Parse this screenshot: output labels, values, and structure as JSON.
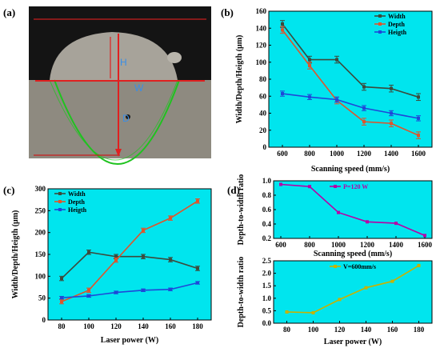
{
  "panel_labels": {
    "a": "(a)",
    "b": "(b)",
    "c": "(c)",
    "d": "(d)"
  },
  "photo": {
    "label_h": "H",
    "label_w": "W",
    "label_d": "D"
  },
  "colors": {
    "plot_bg": "#00e5ee",
    "width": "#3c4a3c",
    "depth": "#e0542a",
    "heigth": "#1f47d8",
    "ratio_speed": "#b800a6",
    "ratio_power": "#c8b200"
  },
  "chart_data": [
    {
      "id": "b",
      "type": "line",
      "xlabel": "Scanning speed (mm/s)",
      "ylabel": "Width/Depth/Heigth (μm)",
      "x": [
        600,
        800,
        1000,
        1200,
        1400,
        1600
      ],
      "xticks": [
        "600",
        "800",
        "1000",
        "1200",
        "1400",
        "1600"
      ],
      "ylim": [
        0,
        160
      ],
      "yticks": [
        "0",
        "20",
        "40",
        "60",
        "80",
        "100",
        "120",
        "140",
        "160"
      ],
      "legend_position": "top-right",
      "series": [
        {
          "name": "Width",
          "values": [
            145,
            103,
            103,
            71,
            69,
            59
          ],
          "err": 4
        },
        {
          "name": "Depth",
          "values": [
            138,
            96,
            55,
            30,
            28,
            14
          ],
          "err": 4
        },
        {
          "name": "Heigth",
          "values": [
            63,
            59,
            56,
            46,
            40,
            34
          ],
          "err": 3
        }
      ]
    },
    {
      "id": "c",
      "type": "line",
      "xlabel": "Laser power (W)",
      "ylabel": "Width/Depth/Heigth (μm)",
      "x": [
        80,
        100,
        120,
        140,
        160,
        180
      ],
      "xticks": [
        "80",
        "100",
        "120",
        "140",
        "160",
        "180"
      ],
      "ylim": [
        0,
        300
      ],
      "yticks": [
        "0",
        "50",
        "100",
        "150",
        "200",
        "250",
        "300"
      ],
      "legend_position": "top-left",
      "series": [
        {
          "name": "Width",
          "values": [
            95,
            155,
            145,
            145,
            138,
            118
          ],
          "err": 5
        },
        {
          "name": "Depth",
          "values": [
            42,
            68,
            137,
            205,
            233,
            272
          ],
          "err": 5
        },
        {
          "name": "Heigth",
          "values": [
            51,
            55,
            63,
            68,
            70,
            85
          ],
          "err": 3
        }
      ]
    },
    {
      "id": "d1",
      "type": "line",
      "xlabel": "Scanning speed (mm/s)",
      "ylabel": "Depth-to-width ratio",
      "x": [
        600,
        800,
        1000,
        1200,
        1400,
        1600
      ],
      "xticks": [
        "600",
        "800",
        "1000",
        "1200",
        "1400",
        "1600"
      ],
      "ylim": [
        0.2,
        1.0
      ],
      "yticks": [
        "0.2",
        "0.4",
        "0.6",
        "0.8",
        "1.0"
      ],
      "legend_position": "top-center",
      "series": [
        {
          "name": "P=120 W",
          "values": [
            0.95,
            0.92,
            0.56,
            0.43,
            0.41,
            0.24
          ]
        }
      ]
    },
    {
      "id": "d2",
      "type": "line",
      "xlabel": "Laser power (W)",
      "ylabel": "Depth-to-width ratio",
      "x": [
        80,
        100,
        120,
        140,
        160,
        180
      ],
      "xticks": [
        "80",
        "100",
        "120",
        "140",
        "160",
        "180"
      ],
      "ylim": [
        0.0,
        2.5
      ],
      "yticks": [
        "0.0",
        "0.5",
        "1.0",
        "1.5",
        "2.0",
        "2.5"
      ],
      "legend_position": "top-center",
      "series": [
        {
          "name": "V=600mm/s",
          "values": [
            0.45,
            0.42,
            0.95,
            1.42,
            1.68,
            2.31
          ]
        }
      ]
    }
  ]
}
